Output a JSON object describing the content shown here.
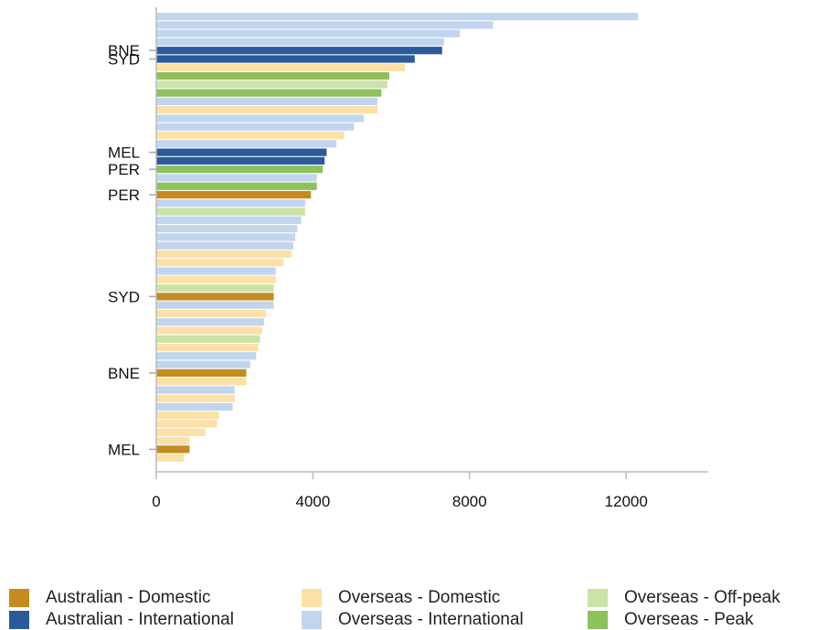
{
  "chart_data": {
    "type": "bar",
    "orientation": "horizontal",
    "title": "",
    "xlabel": "",
    "ylabel": "",
    "xlim": [
      0,
      14000
    ],
    "xticks": [
      0,
      4000,
      8000,
      12000
    ],
    "grid": false,
    "legend_position": "bottom",
    "series": [
      {
        "key": "AD",
        "name": "Australian - Domestic",
        "color": "#c58b1e"
      },
      {
        "key": "AI",
        "name": "Australian - International",
        "color": "#2a5a9a"
      },
      {
        "key": "OD",
        "name": "Overseas - Domestic",
        "color": "#fce0a6"
      },
      {
        "key": "OI",
        "name": "Overseas - International",
        "color": "#c2d5ef"
      },
      {
        "key": "OO",
        "name": "Overseas - Off-peak",
        "color": "#cbe3a6"
      },
      {
        "key": "OP",
        "name": "Overseas - Peak",
        "color": "#8ec05c"
      }
    ],
    "bars": [
      {
        "series": "OI",
        "value": 12300
      },
      {
        "series": "OI",
        "value": 8600
      },
      {
        "series": "OI",
        "value": 7750
      },
      {
        "series": "OI",
        "value": 7350
      },
      {
        "series": "AI",
        "value": 7300,
        "label": "BNE"
      },
      {
        "series": "AI",
        "value": 6600,
        "label": "SYD"
      },
      {
        "series": "OD",
        "value": 6350
      },
      {
        "series": "OP",
        "value": 5950
      },
      {
        "series": "OO",
        "value": 5900
      },
      {
        "series": "OP",
        "value": 5750
      },
      {
        "series": "OI",
        "value": 5650
      },
      {
        "series": "OD",
        "value": 5650
      },
      {
        "series": "OI",
        "value": 5300
      },
      {
        "series": "OI",
        "value": 5050
      },
      {
        "series": "OD",
        "value": 4800
      },
      {
        "series": "OI",
        "value": 4600
      },
      {
        "series": "AI",
        "value": 4350,
        "label": "MEL"
      },
      {
        "series": "AI",
        "value": 4300
      },
      {
        "series": "OP",
        "value": 4250,
        "label": "PER"
      },
      {
        "series": "OI",
        "value": 4100
      },
      {
        "series": "OP",
        "value": 4100
      },
      {
        "series": "AD",
        "value": 3950,
        "label": "PER"
      },
      {
        "series": "OI",
        "value": 3800
      },
      {
        "series": "OO",
        "value": 3800
      },
      {
        "series": "OI",
        "value": 3700
      },
      {
        "series": "OI",
        "value": 3600
      },
      {
        "series": "OI",
        "value": 3550
      },
      {
        "series": "OI",
        "value": 3500
      },
      {
        "series": "OD",
        "value": 3450
      },
      {
        "series": "OD",
        "value": 3250
      },
      {
        "series": "OI",
        "value": 3050
      },
      {
        "series": "OD",
        "value": 3050
      },
      {
        "series": "OO",
        "value": 3000
      },
      {
        "series": "AD",
        "value": 3000,
        "label": "SYD"
      },
      {
        "series": "OI",
        "value": 3000
      },
      {
        "series": "OD",
        "value": 2800
      },
      {
        "series": "OI",
        "value": 2750
      },
      {
        "series": "OD",
        "value": 2700
      },
      {
        "series": "OO",
        "value": 2650
      },
      {
        "series": "OD",
        "value": 2600
      },
      {
        "series": "OI",
        "value": 2550
      },
      {
        "series": "OI",
        "value": 2400
      },
      {
        "series": "AD",
        "value": 2300,
        "label": "BNE"
      },
      {
        "series": "OD",
        "value": 2300
      },
      {
        "series": "OI",
        "value": 2000
      },
      {
        "series": "OD",
        "value": 2000
      },
      {
        "series": "OI",
        "value": 1950
      },
      {
        "series": "OD",
        "value": 1600
      },
      {
        "series": "OD",
        "value": 1550
      },
      {
        "series": "OD",
        "value": 1250
      },
      {
        "series": "OD",
        "value": 850
      },
      {
        "series": "AD",
        "value": 850,
        "label": "MEL"
      },
      {
        "series": "OD",
        "value": 700
      }
    ]
  }
}
